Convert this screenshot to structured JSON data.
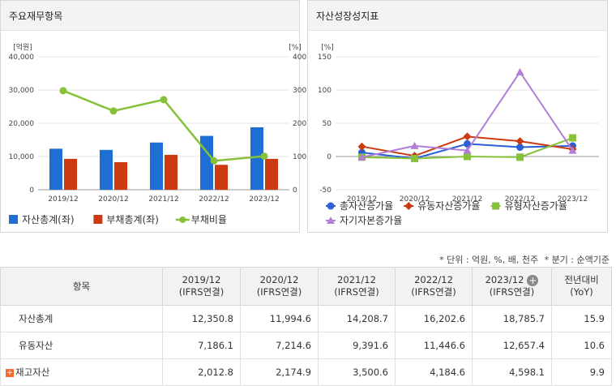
{
  "left_panel": {
    "title": "주요재무항목"
  },
  "right_panel": {
    "title": "자산성장성지표"
  },
  "chart_data": [
    {
      "type": "bar",
      "categories": [
        "2019/12",
        "2020/12",
        "2021/12",
        "2022/12",
        "2023/12"
      ],
      "left_axis_label": "[억원]",
      "right_axis_label": "[%]",
      "left_ylim": [
        0,
        40000
      ],
      "left_ticks": [
        "0",
        "10,000",
        "20,000",
        "30,000",
        "40,000"
      ],
      "right_ylim": [
        0,
        400
      ],
      "right_ticks": [
        "0",
        "100",
        "200",
        "300",
        "400"
      ],
      "series": [
        {
          "name": "자산총계(좌)",
          "type": "bar",
          "axis": "left",
          "color": "#1f6ed4",
          "values": [
            12350.8,
            11994.6,
            14208.7,
            16202.6,
            18785.7
          ]
        },
        {
          "name": "부채총계(좌)",
          "type": "bar",
          "axis": "left",
          "color": "#cc3a12",
          "values": [
            9300,
            8300,
            10500,
            7500,
            9300
          ]
        },
        {
          "name": "부채비율",
          "type": "line",
          "axis": "right",
          "color": "#86c13a",
          "values": [
            298,
            237,
            271,
            87,
            101
          ]
        }
      ]
    },
    {
      "type": "line",
      "categories": [
        "2019/12",
        "2020/12",
        "2021/12",
        "2022/12",
        "2023/12"
      ],
      "axis_label": "[%]",
      "ylim": [
        -50,
        150
      ],
      "ticks": [
        "-50",
        "0",
        "50",
        "100",
        "150"
      ],
      "series": [
        {
          "name": "총자산증가율",
          "marker": "circle",
          "color": "#2a5fd6",
          "values": [
            6,
            -3,
            19,
            14,
            16
          ]
        },
        {
          "name": "유동자산증가율",
          "marker": "diamond",
          "color": "#cc3a12",
          "values": [
            15,
            1,
            30,
            23,
            11
          ]
        },
        {
          "name": "유형자산증가율",
          "marker": "square",
          "color": "#86c13a",
          "values": [
            -1,
            -3,
            0,
            -1,
            28
          ]
        },
        {
          "name": "자기자본증가율",
          "marker": "triangle",
          "color": "#b07ed6",
          "values": [
            -1,
            16,
            9,
            127,
            9
          ]
        }
      ]
    }
  ],
  "unit_note": {
    "unit": "* 단위 : 억원, %, 배, 천주",
    "period": "* 분기 : 순액기준"
  },
  "table": {
    "header": {
      "item": "항목",
      "periods": [
        {
          "year": "2019/12",
          "basis": "(IFRS연결)"
        },
        {
          "year": "2020/12",
          "basis": "(IFRS연결)"
        },
        {
          "year": "2021/12",
          "basis": "(IFRS연결)"
        },
        {
          "year": "2022/12",
          "basis": "(IFRS연결)"
        },
        {
          "year": "2023/12",
          "basis": "(IFRS연결)"
        }
      ],
      "yoy": {
        "line1": "전년대비",
        "line2": "(YoY)"
      }
    },
    "rows": [
      {
        "name": "자산총계",
        "values": [
          "12,350.8",
          "11,994.6",
          "14,208.7",
          "16,202.6",
          "18,785.7"
        ],
        "yoy": "15.9"
      },
      {
        "name": "유동자산",
        "values": [
          "7,186.1",
          "7,214.6",
          "9,391.6",
          "11,446.6",
          "12,657.4"
        ],
        "yoy": "10.6"
      },
      {
        "name": "재고자산",
        "values": [
          "2,012.8",
          "2,174.9",
          "3,500.6",
          "4,184.6",
          "4,598.1"
        ],
        "yoy": "9.9"
      }
    ]
  }
}
